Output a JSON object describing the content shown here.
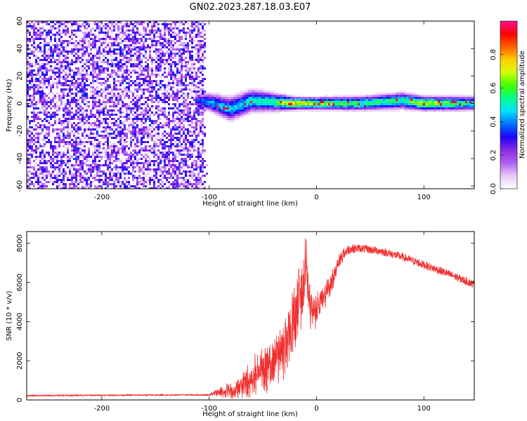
{
  "title": "GN02.2023.287.18.03.E07",
  "chart_data": [
    {
      "type": "heatmap",
      "xlabel": "Height of straight line (km)",
      "ylabel": "Frequency (Hz)",
      "xlim": [
        -270,
        147
      ],
      "ylim": [
        -62,
        60
      ],
      "xticks": [
        -200,
        -100,
        0,
        100
      ],
      "yticks": [
        -60,
        -40,
        -20,
        0,
        20,
        40,
        60
      ],
      "colorbar": {
        "label": "Normalized spectral amplitude",
        "range": [
          0.0,
          1.0
        ],
        "ticks": [
          0.0,
          0.2,
          0.4,
          0.6,
          0.8
        ],
        "colormap": [
          "#ffffff",
          "#e9c8f7",
          "#b060f0",
          "#8a2be2",
          "#2000ff",
          "#0070ff",
          "#00e0ff",
          "#00ff90",
          "#40ff00",
          "#d0ff00",
          "#ffd000",
          "#ff6000",
          "#ff0000",
          "#ff1090"
        ]
      },
      "noise_region": {
        "x": [
          -270,
          -103
        ],
        "amplitude": [
          0.05,
          0.35
        ]
      },
      "ridge": [
        {
          "x": -112,
          "freq": 2,
          "width": 6,
          "amplitude": 0.35
        },
        {
          "x": -100,
          "freq": 1,
          "width": 9,
          "amplitude": 0.42
        },
        {
          "x": -80,
          "freq": -4,
          "width": 12,
          "amplitude": 0.45
        },
        {
          "x": -60,
          "freq": 2,
          "width": 11,
          "amplitude": 0.5
        },
        {
          "x": -40,
          "freq": 1,
          "width": 9,
          "amplitude": 0.55
        },
        {
          "x": -20,
          "freq": 0,
          "width": 6,
          "amplitude": 0.8
        },
        {
          "x": 0,
          "freq": 0,
          "width": 6,
          "amplitude": 0.65
        },
        {
          "x": 40,
          "freq": 0,
          "width": 7,
          "amplitude": 0.55
        },
        {
          "x": 80,
          "freq": 2,
          "width": 8,
          "amplitude": 0.55
        },
        {
          "x": 100,
          "freq": 0,
          "width": 7,
          "amplitude": 0.7
        },
        {
          "x": 147,
          "freq": 0,
          "width": 7,
          "amplitude": 0.5
        }
      ]
    },
    {
      "type": "line",
      "xlabel": "Height of straight line (km)",
      "ylabel": "SNR (10 * v/v)",
      "xlim": [
        -270,
        147
      ],
      "ylim": [
        0,
        8600
      ],
      "xticks": [
        -200,
        -100,
        0,
        100
      ],
      "yticks": [
        0,
        2000,
        4000,
        6000,
        8000
      ],
      "color": "#f03030",
      "series": [
        {
          "envelope_x": [
            -270,
            -200,
            -100,
            -85,
            -70,
            -55,
            -40,
            -30,
            -20,
            -12,
            -10,
            -5,
            5,
            15,
            20,
            30,
            40,
            60,
            80,
            100,
            120,
            147
          ],
          "envelope_y": [
            220,
            240,
            260,
            500,
            900,
            1800,
            2600,
            3200,
            5000,
            6500,
            8000,
            4600,
            5200,
            6200,
            7200,
            7700,
            7750,
            7600,
            7300,
            6900,
            6500,
            5900
          ],
          "noise": [
            40,
            40,
            40,
            350,
            600,
            900,
            1200,
            1400,
            1600,
            1400,
            1200,
            900,
            600,
            500,
            350,
            250,
            200,
            200,
            200,
            200,
            200,
            200
          ]
        }
      ]
    }
  ]
}
